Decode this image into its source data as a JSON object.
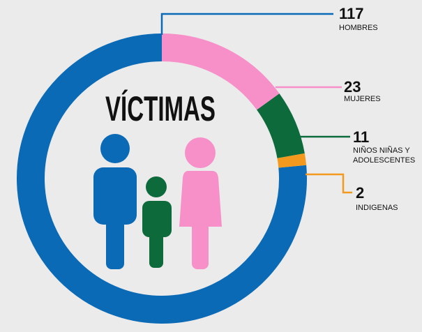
{
  "chart_data": {
    "type": "pie",
    "title": "VÍCTIMAS",
    "categories": [
      "HOMBRES",
      "MUJERES",
      "NIÑOS NIÑAS Y ADOLESCENTES",
      "INDIGENAS"
    ],
    "values": [
      117,
      23,
      11,
      2
    ],
    "colors": [
      "#0a6ab6",
      "#f790c9",
      "#0d6b3b",
      "#f39a1e"
    ]
  }
}
